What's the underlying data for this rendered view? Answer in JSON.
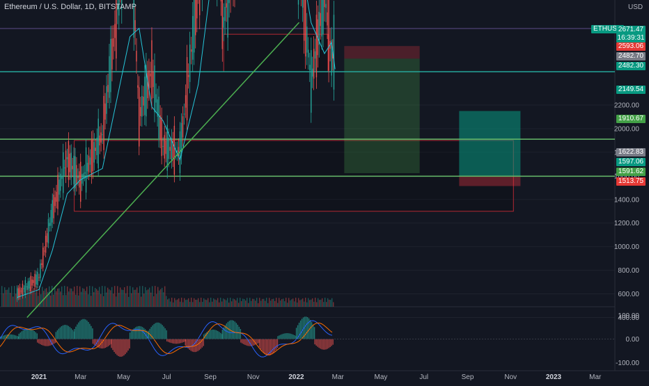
{
  "header": {
    "title": "Ethereum / U.S. Dollar, 1D, BITSTAMP",
    "currency": "USD",
    "ticker": "ETHUSD"
  },
  "colors": {
    "background": "#131722",
    "up": "#26a69a",
    "down": "#ef5350",
    "trendline": "#4caf50",
    "ma": "#26c6da",
    "macd": "#2962ff",
    "signal": "#ff6d00"
  },
  "price_tags": [
    {
      "id": "last",
      "value": "2671.47",
      "sub": "16:39:31",
      "color": "#089981"
    },
    {
      "id": "p2593",
      "value": "2593.06",
      "color": "#e53935"
    },
    {
      "id": "p2482a",
      "value": "2482.70",
      "color": "#787b86"
    },
    {
      "id": "p2482b",
      "value": "2482.30",
      "color": "#089981"
    },
    {
      "id": "p2149",
      "value": "2149.54",
      "color": "#089981"
    },
    {
      "id": "p1910",
      "value": "1910.67",
      "color": "#43a047"
    },
    {
      "id": "p1622",
      "value": "1622.83",
      "color": "#787b86"
    },
    {
      "id": "p1597",
      "value": "1597.06",
      "color": "#089981"
    },
    {
      "id": "p1591",
      "value": "1591.62",
      "color": "#43a047"
    },
    {
      "id": "p1513",
      "value": "1513.75",
      "color": "#e53935"
    }
  ],
  "chart_data": [
    {
      "type": "line",
      "title": "Ethereum / U.S. Dollar, 1D, BITSTAMP",
      "y_unit": "USD",
      "y_ticks": [
        "400.00",
        "600.00",
        "800.00",
        "1000.00",
        "1200.00",
        "1400.00",
        "1600.00",
        "1800.00",
        "2000.00",
        "2200.00"
      ],
      "x_ticks": [
        "2021",
        "Mar",
        "May",
        "Jul",
        "Sep",
        "Nov",
        "2022",
        "Mar",
        "May",
        "Jul",
        "Sep",
        "Nov",
        "2023",
        "Mar"
      ],
      "x_ticks_bold": [
        "2021",
        "2022",
        "2023"
      ],
      "series": [
        {
          "name": "",
          "points": [
            [
              "2020-12-01",
              600
            ],
            [
              "2021-01-01",
              740
            ],
            [
              "2021-01-20",
              1300
            ],
            [
              "2021-02-10",
              1750
            ],
            [
              "2021-03-01",
              1550
            ],
            [
              "2021-04-01",
              1950
            ],
            [
              "2021-05-10",
              3900
            ],
            [
              "2021-05-23",
              2100
            ],
            [
              "2021-06-10",
              2500
            ],
            [
              "2021-06-26",
              1850
            ],
            [
              "2021-07-20",
              1800
            ],
            [
              "2021-08-15",
              3200
            ],
            [
              "2021-09-05",
              3900
            ],
            [
              "2021-09-20",
              2900
            ],
            [
              "2021-10-25",
              4200
            ],
            [
              "2021-11-10",
              4800
            ],
            [
              "2021-12-05",
              4100
            ],
            [
              "2021-12-31",
              3700
            ],
            [
              "2022-01-22",
              2400
            ],
            [
              "2022-02-10",
              3150
            ],
            [
              "2022-02-20",
              2600
            ],
            [
              "2022-02-25",
              2671.47
            ]
          ]
        }
      ],
      "trendline": {
        "from": [
          "2020-12-15",
          400
        ],
        "to": [
          "2022-01-05",
          2900
        ]
      },
      "horizontal_levels": [
        2482.3,
        1910.67,
        1597.06
      ],
      "zones": [
        {
          "from": "2021-09-20",
          "to": "2022-02-15",
          "low": 2482.7,
          "high": 2800
        },
        {
          "from": "2021-02-20",
          "to": "2022-11-05",
          "low": 1300,
          "high": 1900
        }
      ],
      "positions": [
        {
          "from": "2022-03-10",
          "to": "2022-06-25",
          "entry": 1622.83,
          "target": 2700,
          "stop": 2593.06
        },
        {
          "from": "2022-08-20",
          "to": "2022-11-15",
          "entry": 1597.06,
          "target": 2149.54,
          "stop": 1513.75
        }
      ],
      "volume_profile": "high volume early 2021, declining through 2022"
    },
    {
      "type": "bar",
      "title": "",
      "y_ticks": [
        "100.00",
        "0.00",
        "-100.00"
      ],
      "ylim": [
        -110,
        110
      ],
      "series": [
        {
          "name": "",
          "values": [
            20,
            45,
            -30,
            60,
            85,
            -40,
            -75,
            55,
            70,
            -20,
            -55,
            40,
            80,
            -30,
            -70,
            25,
            95,
            -45
          ]
        }
      ]
    }
  ]
}
